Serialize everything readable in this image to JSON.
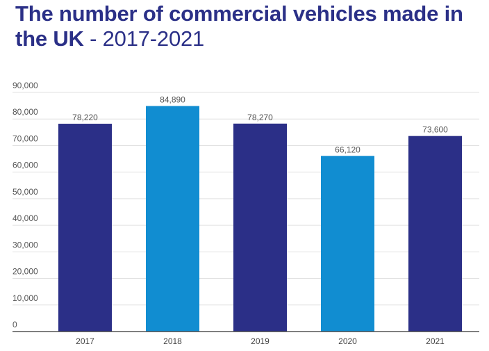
{
  "chart_data": {
    "type": "bar",
    "title": "The number of commercial vehicles made in the UK",
    "title_suffix": " - 2017-2021",
    "categories": [
      "2017",
      "2018",
      "2019",
      "2020",
      "2021"
    ],
    "values": [
      78220,
      84890,
      78270,
      66120,
      73600
    ],
    "data_labels": [
      "78,220",
      "84,890",
      "78,270",
      "66,120",
      "73,600"
    ],
    "bar_colors": [
      "#2b2f87",
      "#118dd1",
      "#2b2f87",
      "#118dd1",
      "#2b2f87"
    ],
    "ylim": [
      0,
      90000
    ],
    "yticks": [
      "0",
      "10,000",
      "20,000",
      "30,000",
      "40,000",
      "50,000",
      "60,000",
      "70,000",
      "80,000",
      "90,000"
    ],
    "xlabel": "",
    "ylabel": "",
    "grid": true,
    "legend": "none"
  }
}
